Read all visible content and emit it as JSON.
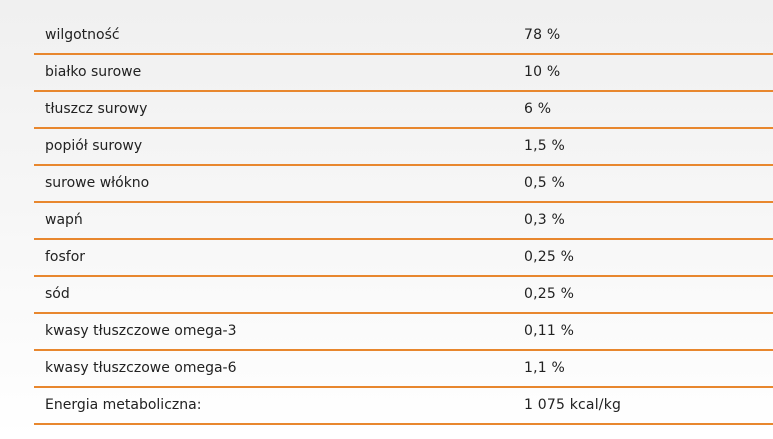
{
  "nutrition_table": {
    "rows": [
      {
        "name": "wilgotność",
        "value": "78 %"
      },
      {
        "name": "białko surowe",
        "value": "10 %"
      },
      {
        "name": "tłuszcz surowy",
        "value": "6 %"
      },
      {
        "name": "popiół surowy",
        "value": "1,5 %"
      },
      {
        "name": "surowe włókno",
        "value": "0,5 %"
      },
      {
        "name": "wapń",
        "value": "0,3 %"
      },
      {
        "name": "fosfor",
        "value": "0,25 %"
      },
      {
        "name": "sód",
        "value": "0,25 %"
      },
      {
        "name": "kwasy tłuszczowe omega-3",
        "value": "0,11 %"
      },
      {
        "name": "kwasy tłuszczowe omega-6",
        "value": "1,1 %"
      },
      {
        "name": "Energia metaboliczna:",
        "value": "1 075 kcal/kg"
      }
    ]
  },
  "colors": {
    "row_divider": "#e8872e",
    "text": "#222222"
  }
}
